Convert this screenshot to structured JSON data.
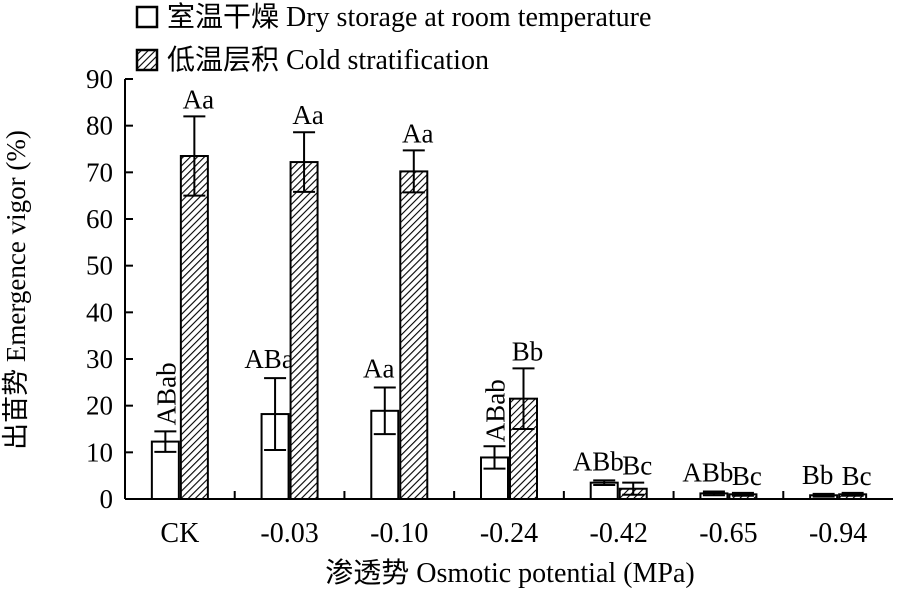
{
  "chart_data": {
    "type": "bar",
    "categories": [
      "CK",
      "-0.03",
      "-0.10",
      "-0.24",
      "-0.42",
      "-0.65",
      "-0.94"
    ],
    "xlabel": "渗透势 Osmotic potential (MPa)",
    "ylabel": "出苗势 Emergence vigor (%)",
    "ylim": [
      0,
      90
    ],
    "yticks": [
      "0",
      "10",
      "20",
      "30",
      "40",
      "50",
      "60",
      "70",
      "80",
      "90"
    ],
    "grid": false,
    "legend_position": "top-left",
    "series": [
      {
        "name": "室温干燥 Dry storage at room temperature",
        "pattern": "white",
        "values": [
          12.3,
          18.2,
          18.9,
          8.9,
          3.5,
          1.2,
          0.8
        ],
        "errors": [
          2.2,
          7.7,
          5.0,
          2.4,
          0.5,
          0.4,
          0.3
        ],
        "labels": [
          "ABab",
          "ABa",
          "Aa",
          "ABab",
          "ABb",
          "ABb",
          "Bb"
        ]
      },
      {
        "name": "低温层积 Cold stratification",
        "pattern": "hatched",
        "values": [
          73.5,
          72.2,
          70.2,
          21.5,
          2.2,
          1.0,
          1.0
        ],
        "errors": [
          8.5,
          6.4,
          4.5,
          6.5,
          1.3,
          0.3,
          0.3
        ],
        "labels": [
          "Aa",
          "Aa",
          "Aa",
          "Bb",
          "Bc",
          "Bc",
          "Bc"
        ]
      }
    ]
  }
}
